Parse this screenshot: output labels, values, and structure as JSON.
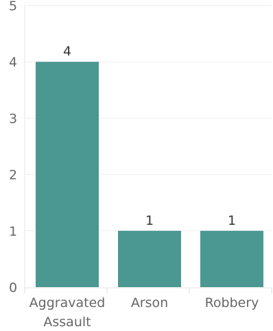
{
  "chart_data": {
    "type": "bar",
    "categories": [
      [
        "Aggravated",
        "Assault"
      ],
      [
        "Arson"
      ],
      [
        "Robbery"
      ]
    ],
    "values": [
      4,
      1,
      1
    ],
    "data_labels": [
      "4",
      "1",
      "1"
    ],
    "ylim": [
      0,
      5
    ],
    "yticks": [
      "0",
      "1",
      "2",
      "3",
      "4",
      "5"
    ],
    "grid": true,
    "title": "",
    "xlabel": "",
    "ylabel": "",
    "colors": {
      "bar": "#4a9891"
    }
  }
}
